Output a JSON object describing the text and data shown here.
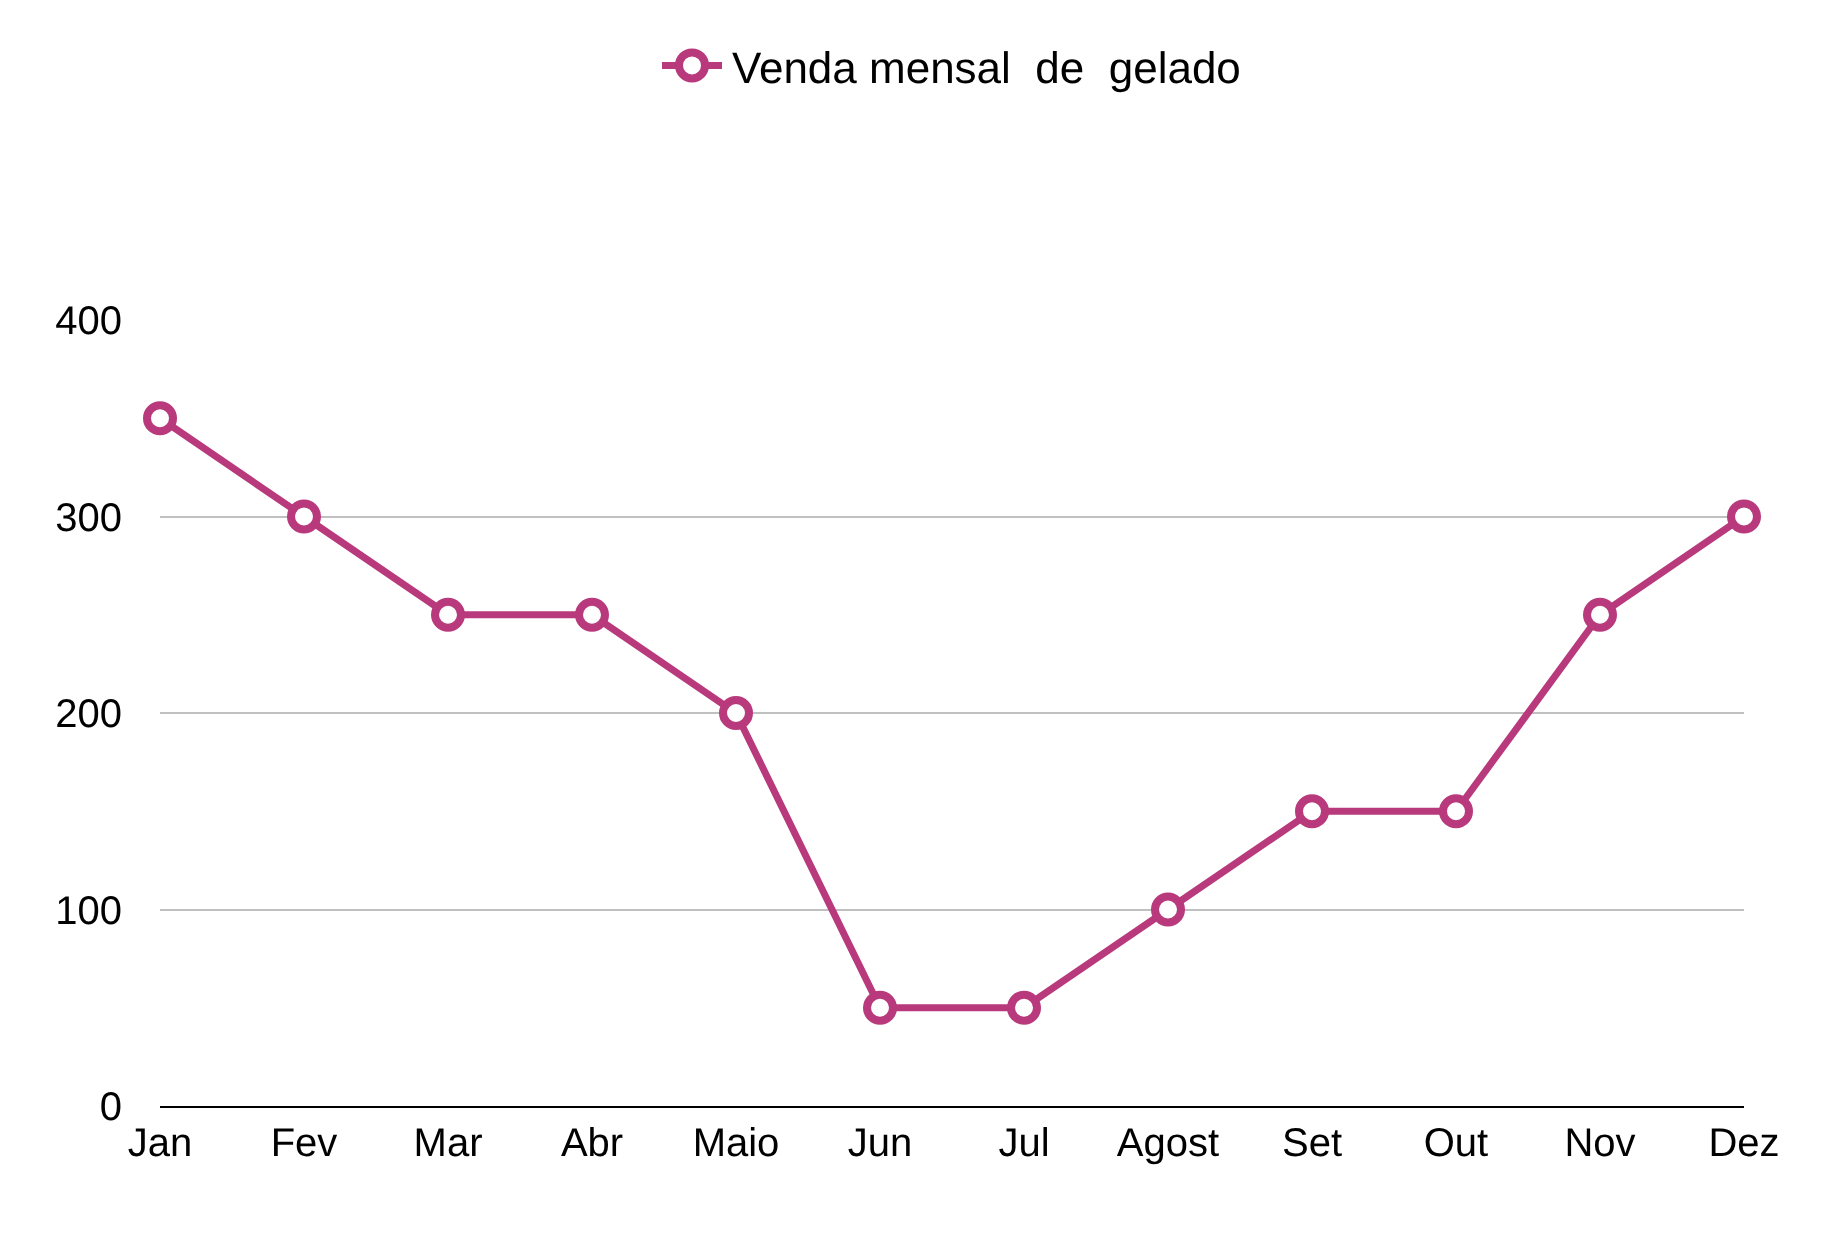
{
  "chart_data": {
    "type": "line",
    "categories": [
      "Jan",
      "Fev",
      "Mar",
      "Abr",
      "Maio",
      "Jun",
      "Jul",
      "Agost",
      "Set",
      "Out",
      "Nov",
      "Dez"
    ],
    "series": [
      {
        "name": "Venda mensal  de  gelado",
        "color": "#b83a7c",
        "values": [
          350,
          300,
          250,
          250,
          200,
          50,
          50,
          100,
          150,
          150,
          250,
          300
        ]
      }
    ],
    "ylim": [
      0,
      400
    ],
    "yticks": [
      0,
      100,
      200,
      300,
      400
    ],
    "grid": "y",
    "legend": "top",
    "marker": "circle",
    "line_style": "solid"
  }
}
